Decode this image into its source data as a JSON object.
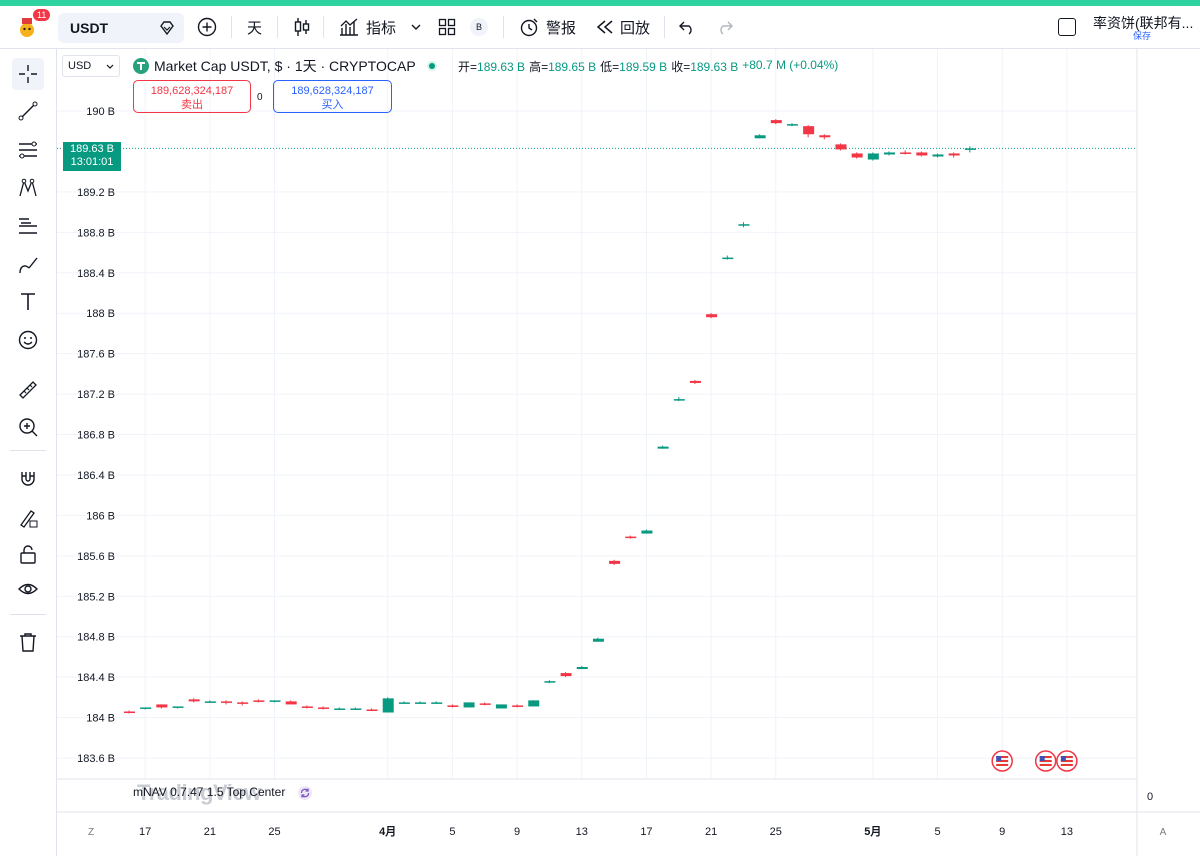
{
  "toolbar": {
    "notif_count": "11",
    "symbol": "USDT",
    "interval": "天",
    "indicators_label": "指标",
    "alerts_label": "警报",
    "replay_label": "回放",
    "b_label": "B",
    "account_name": "率资饼(联邦有...",
    "save_label": "保存"
  },
  "left_tools": [
    "crosshair-icon",
    "trendline-icon",
    "fib-icon",
    "pattern-icon",
    "measure-lines-icon",
    "brush-icon",
    "text-icon",
    "emoji-icon",
    "ruler-icon",
    "zoom-in-icon",
    "magnet-icon",
    "lock-draw-icon",
    "lock-icon",
    "eye-icon",
    "trash-icon"
  ],
  "header": {
    "unit_select": "USD",
    "title": "Market Cap USDT, $ · 1天 · CRYPTOCAP",
    "open_label": "开=",
    "open": "189.63 B",
    "high_label": "高=",
    "high": "189.65 B",
    "low_label": "低=",
    "low": "189.59 B",
    "close_label": "收=",
    "close": "189.63 B",
    "change": "+80.7 M (+0.04%)"
  },
  "trade": {
    "sell_price": "189,628,324,187",
    "sell_label": "卖出",
    "spread": "0",
    "buy_price": "189,628,324,187",
    "buy_label": "买入"
  },
  "price_tag": {
    "value": "189.63 B",
    "countdown": "13:01:01"
  },
  "indicator_line": "mNAV 0.7.47 1.5 Top Center",
  "watermark": "TradingView",
  "volume_axis": "0",
  "axis_buttons": {
    "left": "Z",
    "right": "A"
  },
  "colors": {
    "up": "#089981",
    "down": "#f23645",
    "accent": "#2ed3a0"
  },
  "chart_data": {
    "type": "candlestick",
    "title": "Market Cap USDT, $ · 1天 · CRYPTOCAP",
    "ylim": [
      183.6,
      190.2
    ],
    "y_ticks": [
      183.6,
      184.0,
      184.4,
      184.8,
      185.2,
      185.6,
      186.0,
      186.4,
      186.8,
      187.2,
      187.6,
      188.0,
      188.4,
      188.8,
      189.2,
      190.0
    ],
    "y_tick_labels": [
      "183.6 B",
      "184 B",
      "184.4 B",
      "184.8 B",
      "185.2 B",
      "185.6 B",
      "186 B",
      "186.4 B",
      "186.8 B",
      "187.2 B",
      "187.6 B",
      "188 B",
      "188.4 B",
      "188.8 B",
      "189.2 B",
      "190 B"
    ],
    "x_tick_labels": [
      {
        "i": 1,
        "label": "17"
      },
      {
        "i": 5,
        "label": "21"
      },
      {
        "i": 9,
        "label": "25"
      },
      {
        "i": 16,
        "label": "4月",
        "bold": true
      },
      {
        "i": 20,
        "label": "5"
      },
      {
        "i": 24,
        "label": "9"
      },
      {
        "i": 28,
        "label": "13"
      },
      {
        "i": 32,
        "label": "17"
      },
      {
        "i": 36,
        "label": "21"
      },
      {
        "i": 40,
        "label": "25"
      },
      {
        "i": 46,
        "label": "5月",
        "bold": true
      },
      {
        "i": 50,
        "label": "5"
      },
      {
        "i": 54,
        "label": "9"
      },
      {
        "i": 58,
        "label": "13"
      }
    ],
    "candles": [
      {
        "o": 184.06,
        "h": 184.07,
        "l": 184.04,
        "c": 184.05
      },
      {
        "o": 184.09,
        "h": 184.1,
        "l": 184.08,
        "c": 184.1
      },
      {
        "o": 184.13,
        "h": 184.13,
        "l": 184.09,
        "c": 184.1
      },
      {
        "o": 184.1,
        "h": 184.11,
        "l": 184.09,
        "c": 184.11
      },
      {
        "o": 184.18,
        "h": 184.19,
        "l": 184.15,
        "c": 184.16
      },
      {
        "o": 184.16,
        "h": 184.17,
        "l": 184.15,
        "c": 184.16
      },
      {
        "o": 184.16,
        "h": 184.17,
        "l": 184.13,
        "c": 184.15
      },
      {
        "o": 184.15,
        "h": 184.16,
        "l": 184.12,
        "c": 184.14
      },
      {
        "o": 184.17,
        "h": 184.18,
        "l": 184.15,
        "c": 184.16
      },
      {
        "o": 184.16,
        "h": 184.17,
        "l": 184.15,
        "c": 184.17
      },
      {
        "o": 184.16,
        "h": 184.17,
        "l": 184.13,
        "c": 184.13
      },
      {
        "o": 184.11,
        "h": 184.12,
        "l": 184.09,
        "c": 184.1
      },
      {
        "o": 184.1,
        "h": 184.11,
        "l": 184.08,
        "c": 184.09
      },
      {
        "o": 184.09,
        "h": 184.1,
        "l": 184.08,
        "c": 184.09
      },
      {
        "o": 184.09,
        "h": 184.1,
        "l": 184.08,
        "c": 184.09
      },
      {
        "o": 184.08,
        "h": 184.09,
        "l": 184.07,
        "c": 184.07
      },
      {
        "o": 184.05,
        "h": 184.2,
        "l": 184.05,
        "c": 184.19
      },
      {
        "o": 184.15,
        "h": 184.16,
        "l": 184.14,
        "c": 184.15
      },
      {
        "o": 184.15,
        "h": 184.16,
        "l": 184.14,
        "c": 184.15
      },
      {
        "o": 184.15,
        "h": 184.16,
        "l": 184.14,
        "c": 184.15
      },
      {
        "o": 184.12,
        "h": 184.13,
        "l": 184.1,
        "c": 184.11
      },
      {
        "o": 184.1,
        "h": 184.15,
        "l": 184.1,
        "c": 184.15
      },
      {
        "o": 184.14,
        "h": 184.15,
        "l": 184.12,
        "c": 184.13
      },
      {
        "o": 184.09,
        "h": 184.13,
        "l": 184.09,
        "c": 184.13
      },
      {
        "o": 184.12,
        "h": 184.13,
        "l": 184.1,
        "c": 184.11
      },
      {
        "o": 184.11,
        "h": 184.17,
        "l": 184.11,
        "c": 184.17
      },
      {
        "o": 184.35,
        "h": 184.37,
        "l": 184.34,
        "c": 184.36
      },
      {
        "o": 184.44,
        "h": 184.45,
        "l": 184.4,
        "c": 184.41
      },
      {
        "o": 184.48,
        "h": 184.51,
        "l": 184.48,
        "c": 184.5
      },
      {
        "o": 184.75,
        "h": 184.79,
        "l": 184.75,
        "c": 184.78
      },
      {
        "o": 185.55,
        "h": 185.56,
        "l": 185.51,
        "c": 185.52
      },
      {
        "o": 185.79,
        "h": 185.8,
        "l": 185.77,
        "c": 185.78
      },
      {
        "o": 185.82,
        "h": 185.86,
        "l": 185.82,
        "c": 185.85
      },
      {
        "o": 186.66,
        "h": 186.69,
        "l": 186.66,
        "c": 186.68
      },
      {
        "o": 187.15,
        "h": 187.17,
        "l": 187.13,
        "c": 187.15
      },
      {
        "o": 187.33,
        "h": 187.34,
        "l": 187.3,
        "c": 187.31
      },
      {
        "o": 187.99,
        "h": 188.0,
        "l": 187.95,
        "c": 187.96
      },
      {
        "o": 188.55,
        "h": 188.57,
        "l": 188.53,
        "c": 188.55
      },
      {
        "o": 188.88,
        "h": 188.9,
        "l": 188.85,
        "c": 188.88
      },
      {
        "o": 189.73,
        "h": 189.77,
        "l": 189.73,
        "c": 189.76
      },
      {
        "o": 189.91,
        "h": 189.92,
        "l": 189.87,
        "c": 189.88
      },
      {
        "o": 189.86,
        "h": 189.88,
        "l": 189.85,
        "c": 189.87
      },
      {
        "o": 189.85,
        "h": 189.86,
        "l": 189.74,
        "c": 189.77
      },
      {
        "o": 189.76,
        "h": 189.77,
        "l": 189.72,
        "c": 189.74
      },
      {
        "o": 189.67,
        "h": 189.68,
        "l": 189.61,
        "c": 189.62
      },
      {
        "o": 189.58,
        "h": 189.59,
        "l": 189.53,
        "c": 189.54
      },
      {
        "o": 189.52,
        "h": 189.59,
        "l": 189.51,
        "c": 189.58
      },
      {
        "o": 189.57,
        "h": 189.6,
        "l": 189.56,
        "c": 189.59
      },
      {
        "o": 189.59,
        "h": 189.61,
        "l": 189.57,
        "c": 189.58
      },
      {
        "o": 189.59,
        "h": 189.6,
        "l": 189.55,
        "c": 189.56
      },
      {
        "o": 189.55,
        "h": 189.58,
        "l": 189.54,
        "c": 189.57
      },
      {
        "o": 189.58,
        "h": 189.59,
        "l": 189.54,
        "c": 189.56
      },
      {
        "o": 189.63,
        "h": 189.65,
        "l": 189.59,
        "c": 189.63
      }
    ],
    "last_price": 189.63,
    "event_markers": [
      {
        "i": 54,
        "type": "US flag"
      },
      {
        "i": 57,
        "type": "US flag"
      },
      {
        "i": 58,
        "type": "US flag"
      }
    ]
  }
}
